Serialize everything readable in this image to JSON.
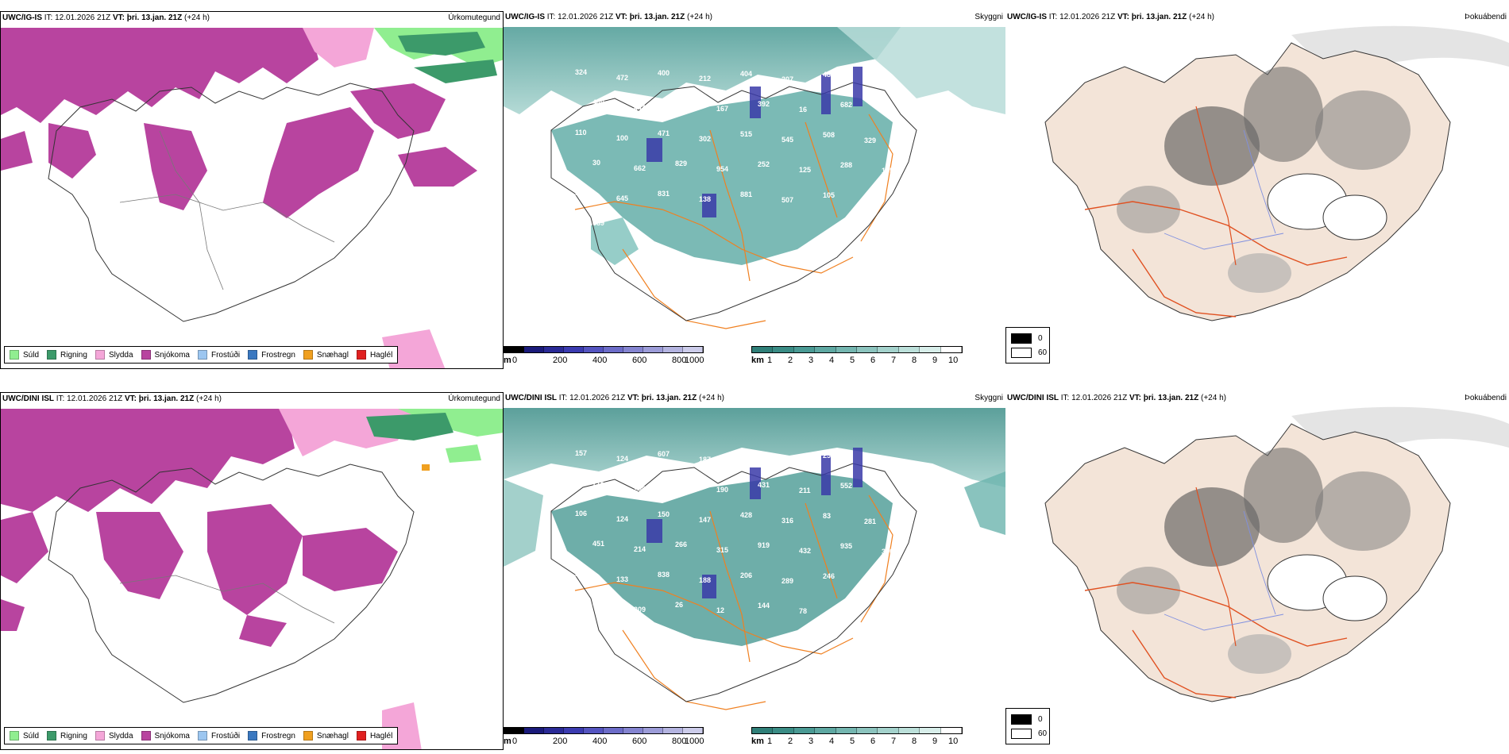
{
  "rows": [
    {
      "model": "UWC/IG-IS",
      "it_label": "IT:",
      "it_value": "12.01.2026 21Z",
      "vt_label": "VT:",
      "vt_value": "þri. 13.jan. 21Z",
      "lead": "(+24 h)"
    },
    {
      "model": "UWC/DINI ISL",
      "it_label": "IT:",
      "it_value": "12.01.2026 21Z",
      "vt_label": "VT:",
      "vt_value": "þri. 13.jan. 21Z",
      "lead": "(+24 h)"
    }
  ],
  "panel_names": {
    "precip": "Úrkomutegund",
    "cloud": "Skyggni",
    "fog": "Þokuábendi"
  },
  "precip_legend": [
    {
      "label": "Súld",
      "color": "#90ee90"
    },
    {
      "label": "Rigning",
      "color": "#3c9a6a"
    },
    {
      "label": "Slydda",
      "color": "#f4a6d8"
    },
    {
      "label": "Snjókoma",
      "color": "#b8449f"
    },
    {
      "label": "Frostúði",
      "color": "#9cc6f0"
    },
    {
      "label": "Frostregn",
      "color": "#3a78c0"
    },
    {
      "label": "Snæhagl",
      "color": "#f0a020"
    },
    {
      "label": "Haglél",
      "color": "#e02020"
    }
  ],
  "height_bar": {
    "unit": "m",
    "ticks": [
      "0",
      "200",
      "400",
      "600",
      "800",
      "1000"
    ]
  },
  "visibility_bar": {
    "unit": "km",
    "ticks": [
      "1",
      "2",
      "3",
      "4",
      "5",
      "6",
      "7",
      "8",
      "9",
      "10"
    ]
  },
  "fog_box": {
    "low": "0",
    "high": "60"
  },
  "cloud_labels_top": [
    "324",
    "472",
    "400",
    "212",
    "404",
    "207",
    "487",
    "336",
    "440",
    "444",
    "629",
    "167",
    "392",
    "16",
    "682",
    "379",
    "110",
    "100",
    "471",
    "302",
    "515",
    "545",
    "508",
    "329",
    "30",
    "662",
    "829",
    "954",
    "252",
    "125",
    "288",
    "135",
    "514",
    "645",
    "831",
    "138",
    "881",
    "507",
    "105",
    "43",
    "689"
  ],
  "cloud_labels_bottom": [
    "157",
    "124",
    "607",
    "187",
    "84",
    "242",
    "250",
    "291",
    "775",
    "209",
    "118",
    "190",
    "431",
    "211",
    "552",
    "565",
    "106",
    "124",
    "150",
    "147",
    "428",
    "316",
    "83",
    "281",
    "451",
    "214",
    "266",
    "315",
    "919",
    "432",
    "935",
    "370",
    "343",
    "133",
    "838",
    "188",
    "206",
    "289",
    "246",
    "753",
    "687",
    "209",
    "26",
    "12",
    "144",
    "78"
  ]
}
